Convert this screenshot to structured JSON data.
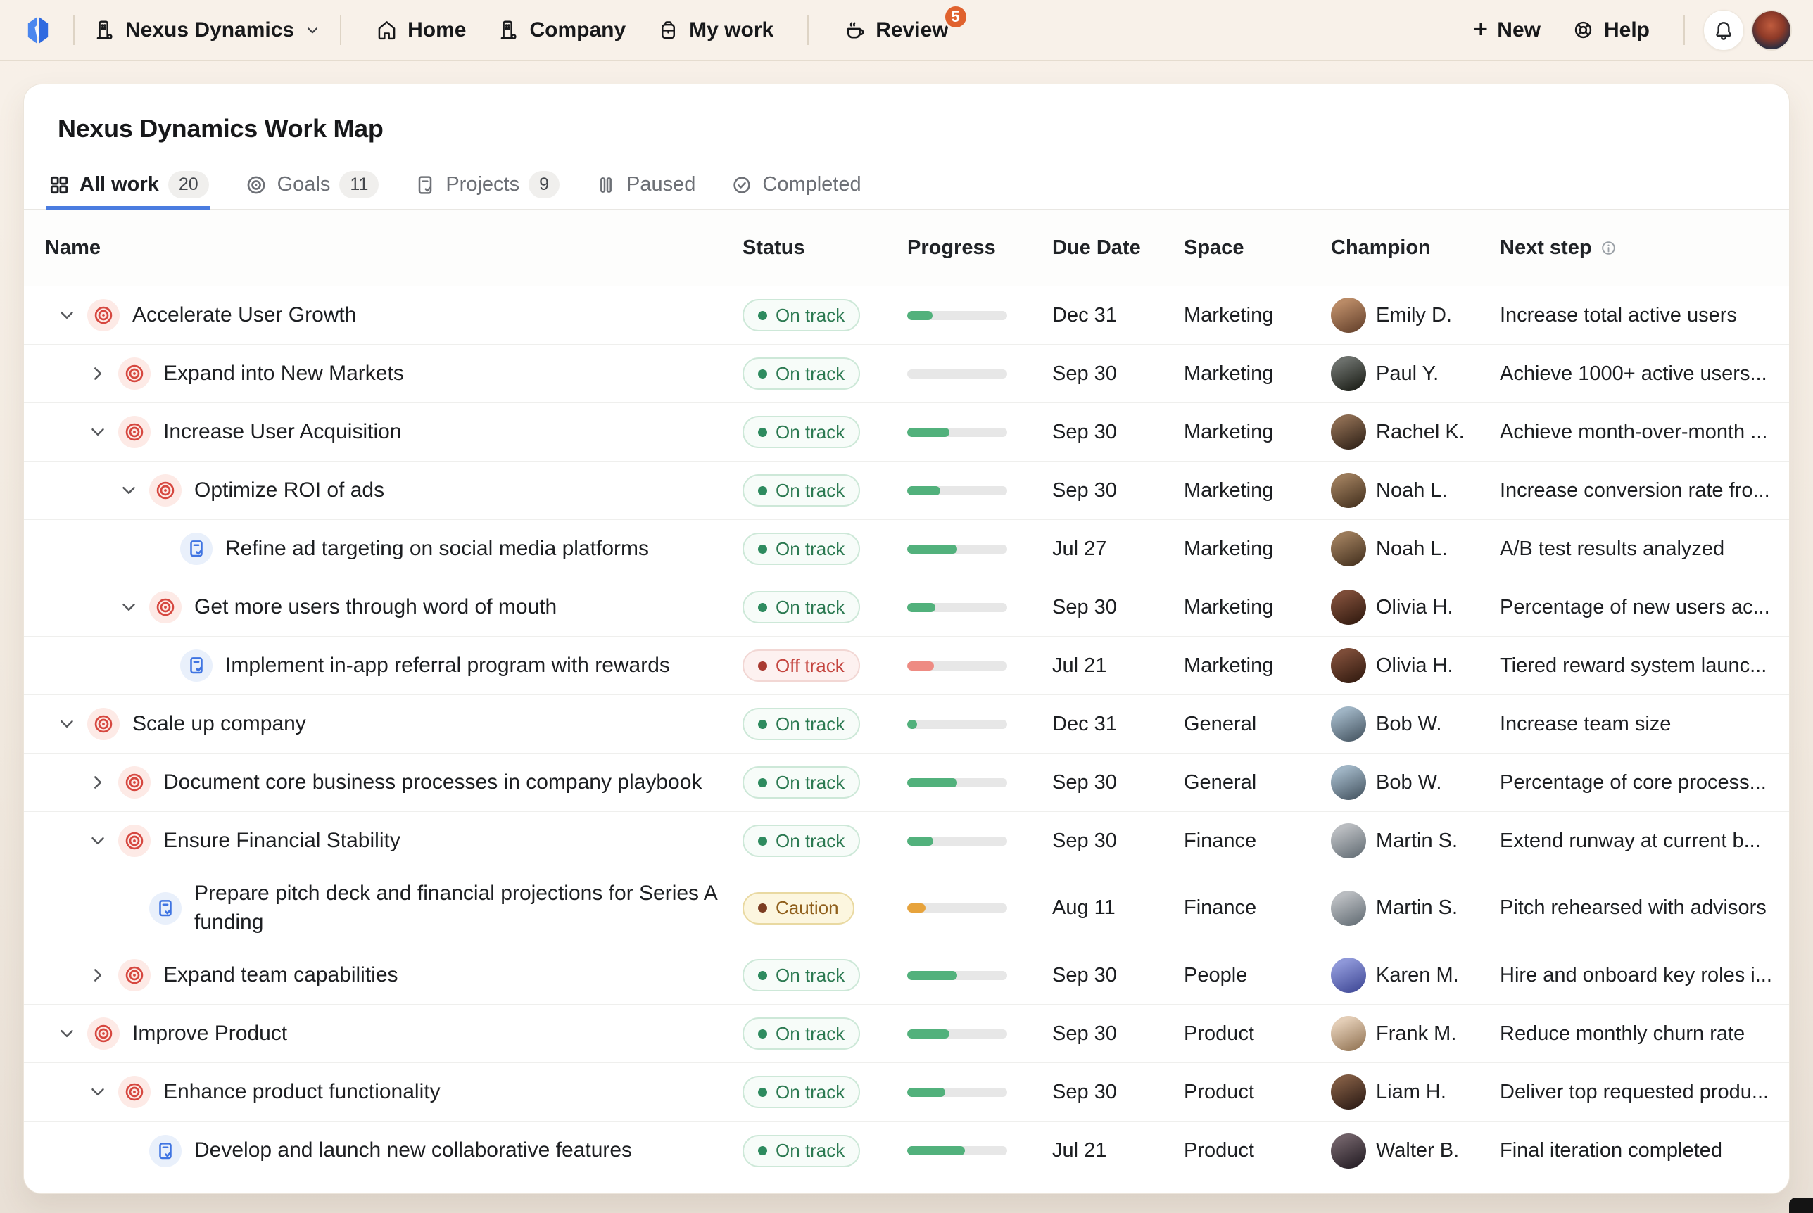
{
  "topbar": {
    "workspace": {
      "label": "Nexus Dynamics"
    },
    "nav": [
      {
        "label": "Home",
        "icon": "home-icon"
      },
      {
        "label": "Company",
        "icon": "building-icon"
      },
      {
        "label": "My work",
        "icon": "backpack-icon"
      }
    ],
    "review": {
      "label": "Review",
      "badge": "5",
      "badge_color": "#e0622e"
    },
    "actions": {
      "new_label": "New",
      "help_label": "Help"
    }
  },
  "page": {
    "title": "Nexus Dynamics Work Map"
  },
  "tabs": [
    {
      "label": "All work",
      "count": "20",
      "icon": "grid-icon",
      "active": true
    },
    {
      "label": "Goals",
      "count": "11",
      "icon": "target-icon",
      "active": false
    },
    {
      "label": "Projects",
      "count": "9",
      "icon": "clipboard-check-icon",
      "active": false
    },
    {
      "label": "Paused",
      "count": "",
      "icon": "pause-icon",
      "active": false
    },
    {
      "label": "Completed",
      "count": "",
      "icon": "check-circle-icon",
      "active": false
    }
  ],
  "table": {
    "columns": [
      "Name",
      "Status",
      "Progress",
      "Due Date",
      "Space",
      "Champion",
      "Next step"
    ],
    "rows": [
      {
        "name": "Accelerate User Growth",
        "type": "goal",
        "indent": 0,
        "expand": "down",
        "status": "On track",
        "progress": 25,
        "due": "Dec 31",
        "space": "Marketing",
        "champion": "Emily D.",
        "avatar": [
          "#b98a66",
          "#6f4a33"
        ],
        "next_step": "Increase total active users"
      },
      {
        "name": "Expand into New Markets",
        "type": "goal",
        "indent": 1,
        "expand": "right",
        "status": "On track",
        "progress": 0,
        "due": "Sep 30",
        "space": "Marketing",
        "champion": "Paul Y.",
        "avatar": [
          "#6b6f6b",
          "#23261f"
        ],
        "next_step": "Achieve 1000+ active users..."
      },
      {
        "name": "Increase User Acquisition",
        "type": "goal",
        "indent": 1,
        "expand": "down",
        "status": "On track",
        "progress": 42,
        "due": "Sep 30",
        "space": "Marketing",
        "champion": "Rachel K.",
        "avatar": [
          "#8a6a50",
          "#3a2a1e"
        ],
        "next_step": "Achieve month-over-month ..."
      },
      {
        "name": "Optimize ROI of ads",
        "type": "goal",
        "indent": 2,
        "expand": "down",
        "status": "On track",
        "progress": 33,
        "due": "Sep 30",
        "space": "Marketing",
        "champion": "Noah L.",
        "avatar": [
          "#9a7a5a",
          "#4f3a26"
        ],
        "next_step": "Increase conversion rate fro..."
      },
      {
        "name": "Refine ad targeting on social media platforms",
        "type": "project",
        "indent": 3,
        "expand": null,
        "status": "On track",
        "progress": 50,
        "due": "Jul 27",
        "space": "Marketing",
        "champion": "Noah L.",
        "avatar": [
          "#9a7a5a",
          "#4f3a26"
        ],
        "next_step": "A/B test results analyzed"
      },
      {
        "name": "Get more users through word of mouth",
        "type": "goal",
        "indent": 2,
        "expand": "down",
        "status": "On track",
        "progress": 28,
        "due": "Sep 30",
        "space": "Marketing",
        "champion": "Olivia H.",
        "avatar": [
          "#7c4c38",
          "#3a2014"
        ],
        "next_step": "Percentage of new users ac..."
      },
      {
        "name": "Implement in-app referral program with rewards",
        "type": "project",
        "indent": 3,
        "expand": null,
        "status": "Off track",
        "progress": 27,
        "due": "Jul 21",
        "space": "Marketing",
        "champion": "Olivia H.",
        "avatar": [
          "#7c4c38",
          "#3a2014"
        ],
        "next_step": "Tiered reward system launc..."
      },
      {
        "name": "Scale up company",
        "type": "goal",
        "indent": 0,
        "expand": "down",
        "status": "On track",
        "progress": 10,
        "due": "Dec 31",
        "space": "General",
        "champion": "Bob W.",
        "avatar": [
          "#9fb4c4",
          "#51616e"
        ],
        "next_step": "Increase team size"
      },
      {
        "name": "Document core business processes in company playbook",
        "type": "goal",
        "indent": 1,
        "expand": "right",
        "status": "On track",
        "progress": 50,
        "due": "Sep 30",
        "space": "General",
        "champion": "Bob W.",
        "avatar": [
          "#9fb4c4",
          "#51616e"
        ],
        "next_step": "Percentage of core process..."
      },
      {
        "name": "Ensure Financial Stability",
        "type": "goal",
        "indent": 1,
        "expand": "down",
        "status": "On track",
        "progress": 26,
        "due": "Sep 30",
        "space": "Finance",
        "champion": "Martin S.",
        "avatar": [
          "#b9bcc0",
          "#6e777e"
        ],
        "next_step": "Extend runway at current b..."
      },
      {
        "name": "Prepare pitch deck and financial projections for Series A funding",
        "type": "project",
        "indent": 2,
        "expand": null,
        "status": "Caution",
        "progress": 18,
        "due": "Aug 11",
        "space": "Finance",
        "champion": "Martin S.",
        "avatar": [
          "#b9bcc0",
          "#6e777e"
        ],
        "next_step": "Pitch rehearsed with advisors"
      },
      {
        "name": "Expand team capabilities",
        "type": "goal",
        "indent": 1,
        "expand": "right",
        "status": "On track",
        "progress": 50,
        "due": "Sep 30",
        "space": "People",
        "champion": "Karen M.",
        "avatar": [
          "#8e97d8",
          "#49529e"
        ],
        "next_step": "Hire and onboard key roles i..."
      },
      {
        "name": "Improve Product",
        "type": "goal",
        "indent": 0,
        "expand": "down",
        "status": "On track",
        "progress": 42,
        "due": "Sep 30",
        "space": "Product",
        "champion": "Frank M.",
        "avatar": [
          "#e3cdb6",
          "#9c7f60"
        ],
        "next_step": "Reduce monthly churn rate"
      },
      {
        "name": "Enhance product functionality",
        "type": "goal",
        "indent": 1,
        "expand": "down",
        "status": "On track",
        "progress": 38,
        "due": "Sep 30",
        "space": "Product",
        "champion": "Liam H.",
        "avatar": [
          "#7d5941",
          "#35221a"
        ],
        "next_step": "Deliver top requested produ..."
      },
      {
        "name": "Develop and launch new collaborative features",
        "type": "project",
        "indent": 2,
        "expand": null,
        "status": "On track",
        "progress": 58,
        "due": "Jul 21",
        "space": "Product",
        "champion": "Walter B.",
        "avatar": [
          "#6e5f66",
          "#2c242b"
        ],
        "next_step": "Final iteration completed"
      }
    ]
  },
  "colors": {
    "accent_blue": "#4a7ce0",
    "goal_icon": "#d6473f",
    "project_icon": "#3f74e2",
    "progress_track": "#e7e7e7",
    "status_styles": {
      "On track": {
        "text": "#2c7a52",
        "dot": "#2e8b5f",
        "bg": "#f7fcf9",
        "border": "#cde8d8",
        "fill": "#52b17c"
      },
      "Off track": {
        "text": "#c4443e",
        "dot": "#a93a31",
        "bg": "#fdf1f0",
        "border": "#f2d7d4",
        "fill": "#ee8b83"
      },
      "Caution": {
        "text": "#8f5f1c",
        "dot": "#7c3d22",
        "bg": "#fcf6df",
        "border": "#e9d9a1",
        "fill": "#e7a33c"
      }
    }
  }
}
